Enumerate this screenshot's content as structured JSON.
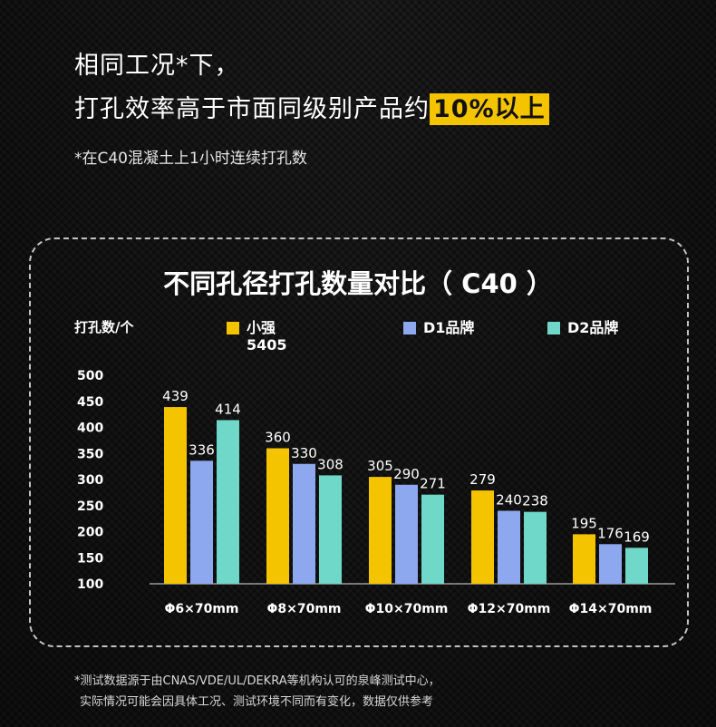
{
  "headline": {
    "line1": "相同工况*下，",
    "line2_prefix": "打孔效率高于市面同级别产品约",
    "line2_highlight": "10%以上"
  },
  "note": "*在C40混凝土上1小时连续打孔数",
  "footer": {
    "line1": "*测试数据源于由CNAS/VDE/UL/DEKRA等机构认可的泉峰测试中心，",
    "line2": "实际情况可能会因具体工况、测试环境不同而有变化，数据仅供参考"
  },
  "colors": {
    "highlight": "#f5c400",
    "series1": "#f5c400",
    "series2": "#8ea8f0",
    "series3": "#6fd8c8"
  },
  "chart_data": {
    "type": "bar",
    "title": "不同孔径打孔数量对比（ C40 ）",
    "ylabel": "打孔数/个",
    "xlabel": "",
    "categories": [
      "Φ6×70mm",
      "Φ8×70mm",
      "Φ10×70mm",
      "Φ12×70mm",
      "Φ14×70mm"
    ],
    "series": [
      {
        "name": "小强\n5405",
        "values": [
          439,
          360,
          305,
          279,
          195
        ]
      },
      {
        "name": "D1品牌",
        "values": [
          336,
          330,
          290,
          240,
          176
        ]
      },
      {
        "name": "D2品牌",
        "values": [
          414,
          308,
          271,
          238,
          169
        ]
      }
    ],
    "yticks": [
      100,
      150,
      200,
      250,
      300,
      350,
      400,
      450,
      500
    ],
    "ylim": [
      100,
      500
    ],
    "grid": false,
    "legend_position": "top"
  }
}
